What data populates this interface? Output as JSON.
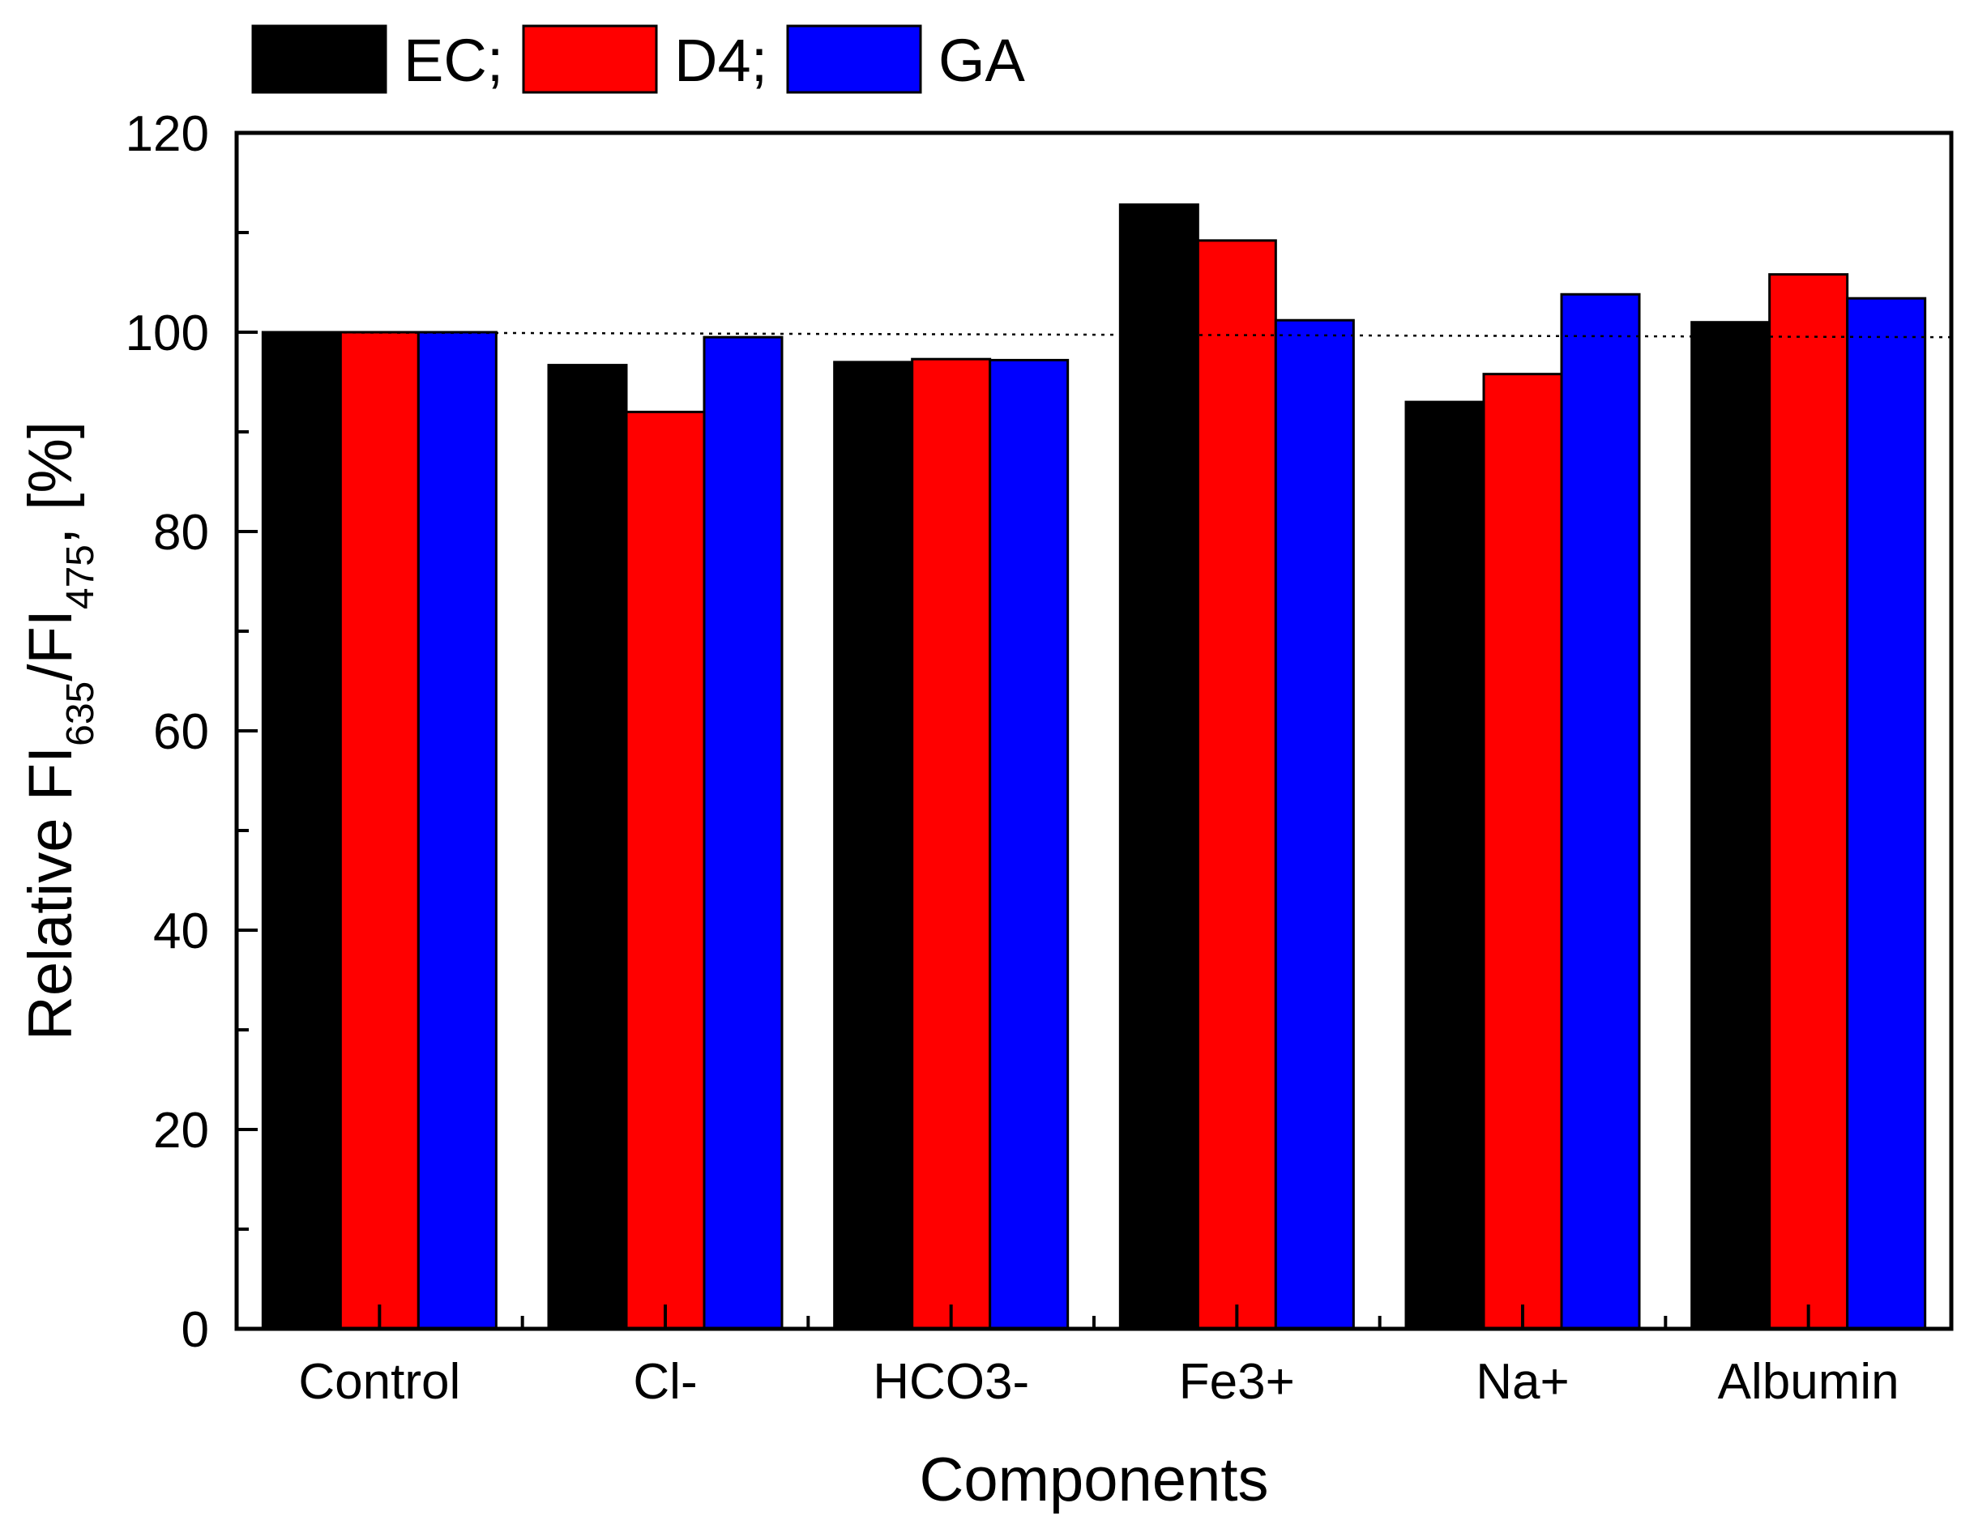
{
  "chart_data": {
    "type": "bar",
    "title": "",
    "xlabel": "Components",
    "ylabel": {
      "prefix": "Relative FI",
      "sub1": "635",
      "mid": "/FI",
      "sub2": "475",
      "suffix": ", [%]"
    },
    "categories": [
      "Control",
      "Cl-",
      "HCO3-",
      "Fe3+",
      "Na+",
      "Albumin"
    ],
    "ylim": [
      0,
      120
    ],
    "yticks": [
      0,
      20,
      40,
      60,
      80,
      100,
      120
    ],
    "series": [
      {
        "name": "EC",
        "legend_label": "EC;",
        "color": "#000000",
        "values": [
          100,
          96.7,
          97.0,
          112.8,
          93.0,
          101.0
        ]
      },
      {
        "name": "D4",
        "legend_label": "D4;",
        "color": "#ff0000",
        "values": [
          100,
          92.0,
          97.3,
          109.2,
          95.8,
          105.8
        ]
      },
      {
        "name": "GA",
        "legend_label": "GA",
        "color": "#0000ff",
        "values": [
          100,
          99.5,
          97.2,
          101.2,
          103.8,
          103.4
        ]
      }
    ],
    "reference_line": {
      "style": "dotted",
      "from": 100,
      "to": 99.5
    },
    "legend_position": "top-left"
  }
}
